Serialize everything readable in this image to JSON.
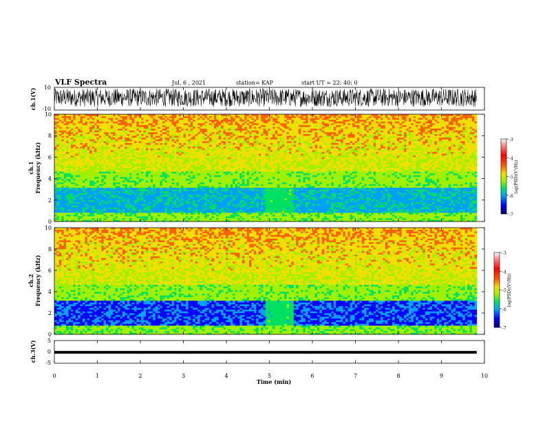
{
  "header": {
    "title": "VLF Spectra",
    "date": "Jul. 6 , 2021",
    "station": "station= KAP",
    "start_ut": "start UT = 22: 40: 0"
  },
  "colors": {
    "colormap": [
      "#000070",
      "#0000ff",
      "#00a0ff",
      "#00e060",
      "#a0f000",
      "#f0e000",
      "#ff6000",
      "#ff0000",
      "#ff9090",
      "#ffffff"
    ],
    "trace": "#000000"
  },
  "chart_data": [
    {
      "type": "line",
      "name": "ch1-waveform",
      "ylabel": "ch.1(V)",
      "ylim": [
        -10,
        10
      ],
      "yticks": [
        "10",
        "-10"
      ],
      "xlim": [
        0,
        10
      ],
      "description_values": {
        "typical_min": -7,
        "typical_max": 9
      }
    },
    {
      "type": "heatmap",
      "name": "ch1-spectrogram",
      "ylabel": "ch.1\nFrequency (kHz)",
      "ylim": [
        0,
        10
      ],
      "yticks": [
        "0",
        "2",
        "4",
        "6",
        "8",
        "10"
      ],
      "xlim": [
        0,
        10
      ],
      "data_end_min": 9.82,
      "disturbance_window_min": [
        4.92,
        5.55
      ],
      "colorbar": {
        "label": "log(PSD)(V²/Hz)",
        "range": [
          -7,
          -3
        ],
        "ticks": [
          "-3",
          "-4",
          "-5",
          "-6",
          "-7"
        ]
      }
    },
    {
      "type": "heatmap",
      "name": "ch2-spectrogram",
      "ylabel": "ch.2\nFrequency (kHz)",
      "ylim": [
        0,
        10
      ],
      "yticks": [
        "0",
        "2",
        "4",
        "6",
        "8",
        "10"
      ],
      "xlim": [
        0,
        10
      ],
      "data_end_min": 9.82,
      "disturbance_window_min": [
        4.92,
        5.55
      ],
      "colorbar": {
        "label": "log(PSD)(V²/Hz)",
        "range": [
          -7,
          -3
        ],
        "ticks": [
          "-3",
          "-4",
          "-5",
          "-6",
          "-7"
        ]
      }
    },
    {
      "type": "line",
      "name": "ch3-waveform",
      "ylabel": "ch.3(V)",
      "ylim": [
        -5,
        5
      ],
      "yticks": [
        "5",
        "0",
        "-5"
      ],
      "xlim": [
        0,
        10
      ],
      "description_values": {
        "band_min": -0.8,
        "band_max": 0.4
      }
    }
  ],
  "xaxis": {
    "label": "Time (min)",
    "ticks": [
      "0",
      "1",
      "2",
      "3",
      "4",
      "5",
      "6",
      "7",
      "8",
      "9",
      "10"
    ]
  }
}
